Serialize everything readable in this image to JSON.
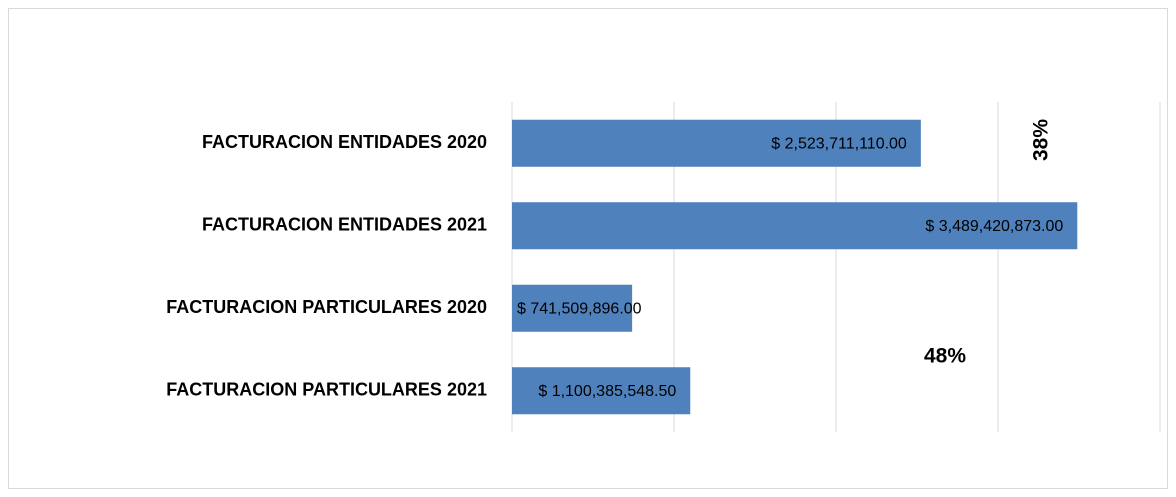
{
  "chart_data": {
    "type": "bar",
    "orientation": "horizontal",
    "categories": [
      "FACTURACION ENTIDADES 2020",
      "FACTURACION ENTIDADES 2021",
      "FACTURACION PARTICULARES 2020",
      "FACTURACION PARTICULARES 2021"
    ],
    "values": [
      2523711110.0,
      3489420873.0,
      741509896.0,
      1100385548.5
    ],
    "value_labels": [
      "$ 2,523,711,110.00",
      "$ 3,489,420,873.00",
      "$ 741,509,896.00",
      "$ 1,100,385,548.50"
    ],
    "color": "#4f81bd",
    "xlim": [
      0,
      4000000000
    ],
    "xticks": [
      0,
      1000000000,
      2000000000,
      3000000000,
      4000000000
    ],
    "grid": true,
    "annotations": [
      "38%",
      "48%"
    ]
  }
}
